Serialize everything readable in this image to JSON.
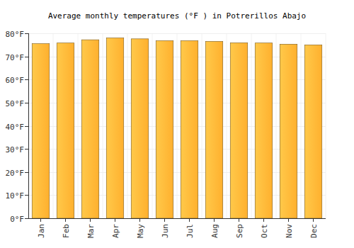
{
  "chart_data": {
    "type": "bar",
    "title": "Average monthly temperatures (°F ) in Potrerillos Abajo",
    "categories": [
      "Jan",
      "Feb",
      "Mar",
      "Apr",
      "May",
      "Jun",
      "Jul",
      "Aug",
      "Sep",
      "Oct",
      "Nov",
      "Dec"
    ],
    "values": [
      75.5,
      75.8,
      77.2,
      78.0,
      77.6,
      76.8,
      76.8,
      76.5,
      75.9,
      75.8,
      75.3,
      75.0
    ],
    "color": "#ffb02e",
    "ylim": [
      0,
      80
    ],
    "yticks": [
      {
        "value": 0,
        "label": "0°F"
      },
      {
        "value": 10,
        "label": "10°F"
      },
      {
        "value": 20,
        "label": "20°F"
      },
      {
        "value": 30,
        "label": "30°F"
      },
      {
        "value": 40,
        "label": "40°F"
      },
      {
        "value": 50,
        "label": "50°F"
      },
      {
        "value": 60,
        "label": "60°F"
      },
      {
        "value": 70,
        "label": "70°F"
      },
      {
        "value": 80,
        "label": "80°F"
      }
    ],
    "grid": true
  }
}
